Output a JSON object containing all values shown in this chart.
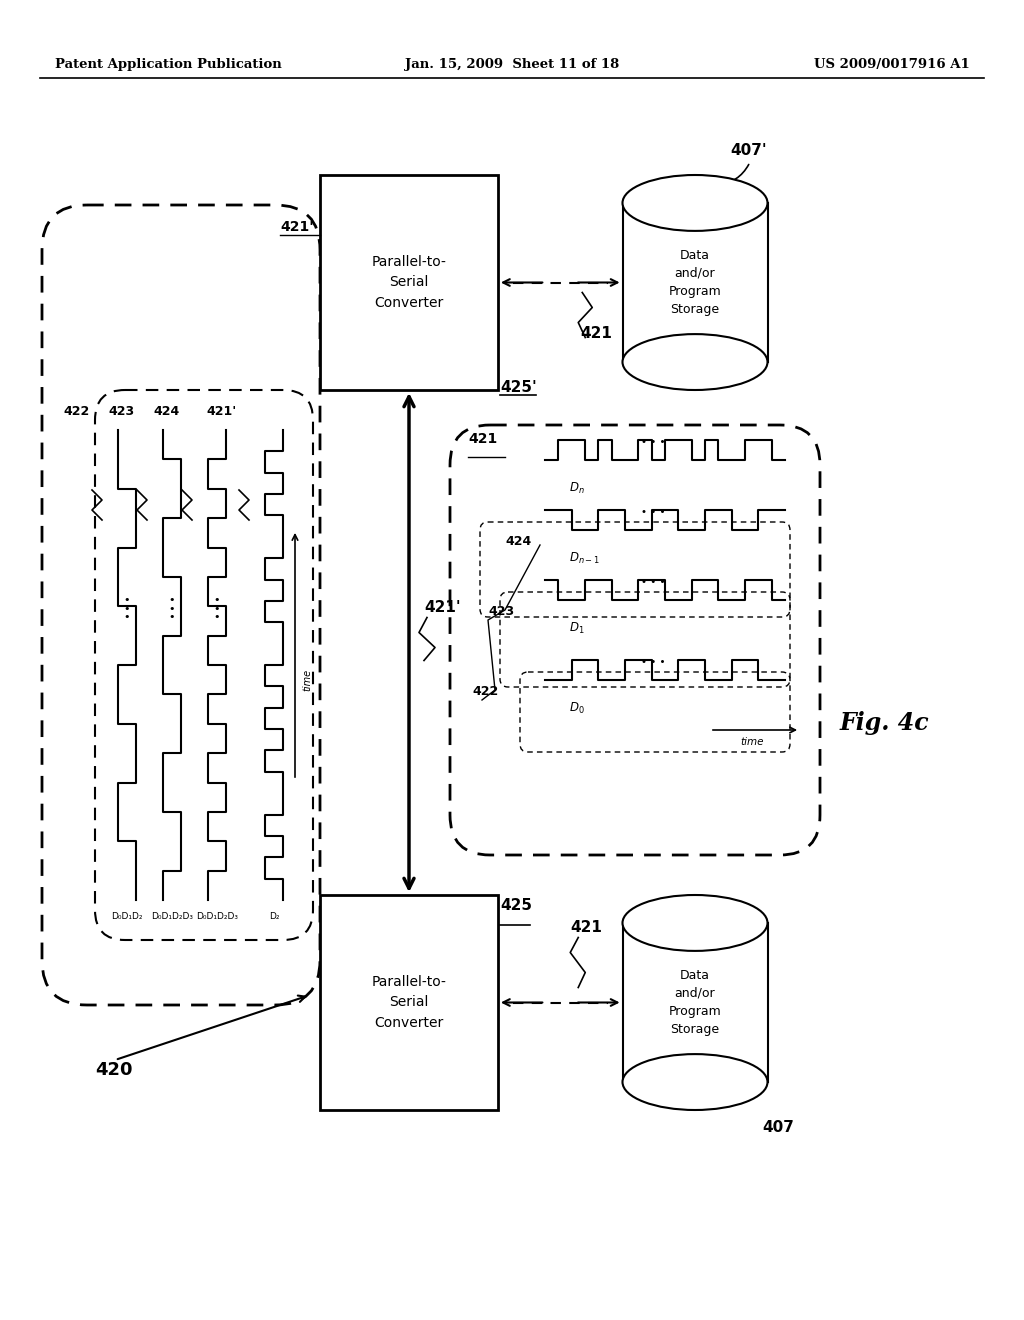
{
  "title_left": "Patent Application Publication",
  "title_center": "Jan. 15, 2009  Sheet 11 of 18",
  "title_right": "US 2009/0017916 A1",
  "fig_label": "Fig. 4c",
  "background": "#ffffff",
  "box_converter_top_text": "Parallel-to-\nSerial\nConverter",
  "box_converter_bot_text": "Parallel-to-\nSerial\nConverter",
  "storage_text": "Data\nand/or\nProgram\nStorage"
}
